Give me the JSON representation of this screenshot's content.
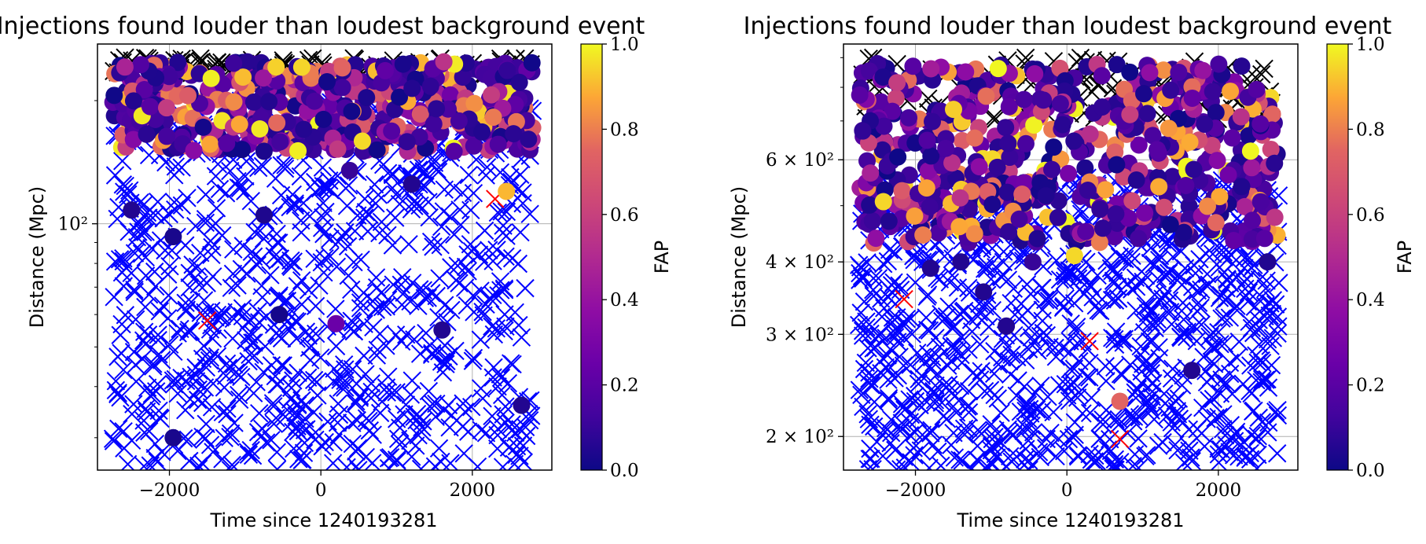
{
  "chart_data": [
    {
      "type": "scatter",
      "title": "Injections found louder than loudest background event",
      "xlabel": "Time since 1240193281",
      "ylabel": "Distance (Mpc)",
      "yscale": "log",
      "xlim": [
        -2950,
        3050
      ],
      "ylim": [
        25,
        275
      ],
      "xticks": [
        -2000,
        0,
        2000
      ],
      "xtick_labels": [
        "−2000",
        "0",
        "2000"
      ],
      "yticks": [
        100
      ],
      "ytick_labels": [
        "10²"
      ],
      "grid": true,
      "colorbar": {
        "label": "FAP",
        "colormap": "plasma",
        "range": [
          0,
          1
        ],
        "ticks": [
          "0.0",
          "0.2",
          "0.4",
          "0.6",
          "0.8",
          "1.0"
        ]
      },
      "series": [
        {
          "marker": "x",
          "color": "#0000ff",
          "x_range": [
            -2750,
            2800
          ],
          "y_range": [
            25,
            200
          ]
        },
        {
          "marker": "x",
          "color": "#ff0000",
          "points": [
            [
              -1500,
              58
            ],
            [
              2300,
              115
            ],
            [
              -2200,
              240
            ]
          ]
        },
        {
          "marker": "x",
          "color": "#000000",
          "x_range": [
            -2750,
            2800
          ],
          "y_range": [
            230,
            255
          ]
        },
        {
          "marker": "o",
          "color_by": "FAP",
          "x_range": [
            -2750,
            2800
          ],
          "y_range": [
            150,
            250
          ]
        },
        {
          "marker": "o",
          "color_by": "FAP",
          "points": [
            [
              -2500,
              108,
              0.05
            ],
            [
              -1950,
              93,
              0.03
            ],
            [
              -750,
              105,
              0.04
            ],
            [
              -550,
              60,
              0.02
            ],
            [
              200,
              57,
              0.25
            ],
            [
              1600,
              55,
              0.05
            ],
            [
              2650,
              36,
              0.05
            ],
            [
              -1950,
              30,
              0.03
            ],
            [
              380,
              135,
              0.1
            ],
            [
              1200,
              125,
              0.05
            ],
            [
              2450,
              120,
              0.9
            ]
          ]
        }
      ]
    },
    {
      "type": "scatter",
      "title": "Injections found louder than loudest background event",
      "xlabel": "Time since 1240193281",
      "ylabel": "Distance (Mpc)",
      "yscale": "log",
      "xlim": [
        -2950,
        3050
      ],
      "ylim": [
        175,
        950
      ],
      "xticks": [
        -2000,
        0,
        2000
      ],
      "xtick_labels": [
        "−2000",
        "0",
        "2000"
      ],
      "yticks": [
        200,
        300,
        400,
        600
      ],
      "ytick_labels": [
        "2 × 10²",
        "3 × 10²",
        "4 × 10²",
        "6 × 10²"
      ],
      "grid": true,
      "colorbar": {
        "label": "FAP",
        "colormap": "plasma",
        "range": [
          0,
          1
        ],
        "ticks": [
          "0.0",
          "0.2",
          "0.4",
          "0.6",
          "0.8",
          "1.0"
        ]
      },
      "series": [
        {
          "marker": "x",
          "color": "#0000ff",
          "x_range": [
            -2750,
            2800
          ],
          "y_range": [
            175,
            560
          ]
        },
        {
          "marker": "x",
          "color": "#ff0000",
          "points": [
            [
              -2150,
              345
            ],
            [
              300,
              292
            ],
            [
              700,
              198
            ],
            [
              -1500,
              580
            ],
            [
              1500,
              580
            ]
          ]
        },
        {
          "marker": "x",
          "color": "#000000",
          "x_range": [
            -2750,
            2800
          ],
          "y_range": [
            700,
            900
          ]
        },
        {
          "marker": "o",
          "color_by": "FAP",
          "x_range": [
            -2750,
            2800
          ],
          "y_range": [
            430,
            880
          ]
        },
        {
          "marker": "o",
          "color_by": "FAP",
          "points": [
            [
              -2350,
              470,
              0.05
            ],
            [
              -1800,
              390,
              0.05
            ],
            [
              -1400,
              400,
              0.05
            ],
            [
              -1100,
              355,
              0.05
            ],
            [
              -800,
              310,
              0.05
            ],
            [
              -450,
              400,
              0.1
            ],
            [
              100,
              410,
              0.95
            ],
            [
              700,
              230,
              0.75
            ],
            [
              1650,
              260,
              0.05
            ],
            [
              2650,
              400,
              0.05
            ],
            [
              -1900,
              445,
              0.8
            ]
          ]
        }
      ]
    }
  ]
}
